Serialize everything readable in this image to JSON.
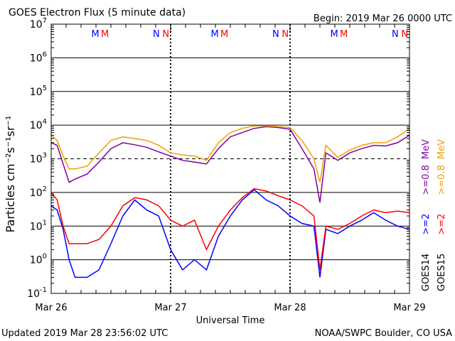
{
  "header": {
    "title": "GOES Electron Flux (5 minute data)",
    "begin": "Begin: 2019 Mar 26 0000 UTC"
  },
  "footer": {
    "updated": "Updated 2019 Mar 28 23:56:02 UTC",
    "credit": "NOAA/SWPC Boulder, CO USA"
  },
  "colors": {
    "goes14_high": "#0000ff",
    "goes15_high": "#ff0000",
    "goes14_low": "#8000a0",
    "goes15_low": "#f0a000",
    "grid": "#000000"
  },
  "chart_data": {
    "type": "line",
    "title": "GOES Electron Flux (5 minute data)",
    "xlabel": "Universal Time",
    "ylabel": "Particles cm⁻²s⁻¹sr⁻¹",
    "x_ticks": [
      "Mar 26",
      "Mar 27",
      "Mar 28",
      "Mar 29"
    ],
    "x_unit": "days since 2019 Mar 26 0000 UTC",
    "xlim": [
      0,
      3
    ],
    "yscale": "log",
    "ylim": [
      0.1,
      10000000
    ],
    "y_ticks": [
      {
        "base": "10",
        "exp": "-1"
      },
      {
        "base": "10",
        "exp": "0"
      },
      {
        "base": "10",
        "exp": "1"
      },
      {
        "base": "10",
        "exp": "2"
      },
      {
        "base": "10",
        "exp": "3"
      },
      {
        "base": "10",
        "exp": "4"
      },
      {
        "base": "10",
        "exp": "5"
      },
      {
        "base": "10",
        "exp": "6"
      },
      {
        "base": "10",
        "exp": "7"
      }
    ],
    "grid": true,
    "legend": {
      "placement": "right",
      "rows": [
        {
          "sat": "GOES14",
          "items": [
            {
              "label": ">=2",
              "color": "#0000ff"
            },
            {
              "label": ">=0.8",
              "color": "#8000a0"
            }
          ]
        },
        {
          "sat": "GOES15",
          "items": [
            {
              "label": ">=2",
              "color": "#ff0000"
            },
            {
              "label": ">=0.8",
              "color": "#f0a000"
            }
          ]
        }
      ],
      "unit": "MeV"
    },
    "markers": [
      {
        "label": "M",
        "x": 0.37,
        "color": "#0000ff"
      },
      {
        "label": "M",
        "x": 0.45,
        "color": "#ff0000"
      },
      {
        "label": "N",
        "x": 0.88,
        "color": "#0000ff"
      },
      {
        "label": "N",
        "x": 0.96,
        "color": "#ff0000"
      },
      {
        "label": "M",
        "x": 1.37,
        "color": "#0000ff"
      },
      {
        "label": "M",
        "x": 1.45,
        "color": "#ff0000"
      },
      {
        "label": "N",
        "x": 1.88,
        "color": "#0000ff"
      },
      {
        "label": "N",
        "x": 1.96,
        "color": "#ff0000"
      },
      {
        "label": "M",
        "x": 2.37,
        "color": "#0000ff"
      },
      {
        "label": "M",
        "x": 2.45,
        "color": "#ff0000"
      },
      {
        "label": "N",
        "x": 2.88,
        "color": "#0000ff"
      },
      {
        "label": "N",
        "x": 2.96,
        "color": "#ff0000"
      }
    ],
    "series": [
      {
        "name": "GOES14 >=2 MeV",
        "color": "#0000ff",
        "x": [
          0,
          0.05,
          0.1,
          0.15,
          0.2,
          0.3,
          0.4,
          0.5,
          0.6,
          0.7,
          0.8,
          0.9,
          1.0,
          1.1,
          1.2,
          1.3,
          1.4,
          1.5,
          1.6,
          1.7,
          1.8,
          1.9,
          2.0,
          2.1,
          2.2,
          2.25,
          2.3,
          2.4,
          2.5,
          2.6,
          2.7,
          2.8,
          2.9,
          3.0
        ],
        "values": [
          40,
          30,
          8,
          1,
          0.3,
          0.3,
          0.5,
          3,
          20,
          60,
          30,
          20,
          2,
          0.5,
          1,
          0.5,
          5,
          20,
          60,
          120,
          60,
          40,
          20,
          12,
          10,
          0.3,
          8,
          6,
          10,
          15,
          25,
          15,
          10,
          8
        ]
      },
      {
        "name": "GOES15 >=2 MeV",
        "color": "#ff0000",
        "x": [
          0,
          0.05,
          0.1,
          0.15,
          0.2,
          0.3,
          0.4,
          0.5,
          0.6,
          0.7,
          0.8,
          0.9,
          1.0,
          1.1,
          1.2,
          1.3,
          1.4,
          1.5,
          1.6,
          1.7,
          1.8,
          1.9,
          2.0,
          2.1,
          2.2,
          2.25,
          2.3,
          2.4,
          2.5,
          2.6,
          2.7,
          2.8,
          2.9,
          3.0
        ],
        "values": [
          100,
          60,
          10,
          3,
          3,
          3,
          4,
          10,
          40,
          70,
          60,
          40,
          15,
          10,
          15,
          2,
          10,
          30,
          70,
          130,
          110,
          80,
          60,
          40,
          20,
          0.5,
          10,
          8,
          12,
          20,
          30,
          25,
          28,
          25
        ]
      },
      {
        "name": "GOES14 >=0.8 MeV",
        "color": "#8000a0",
        "x": [
          0,
          0.05,
          0.1,
          0.15,
          0.2,
          0.3,
          0.4,
          0.5,
          0.6,
          0.7,
          0.8,
          0.9,
          1.0,
          1.1,
          1.2,
          1.3,
          1.4,
          1.5,
          1.6,
          1.7,
          1.8,
          1.9,
          2.0,
          2.1,
          2.2,
          2.25,
          2.3,
          2.4,
          2.5,
          2.6,
          2.7,
          2.8,
          2.9,
          3.0
        ],
        "values": [
          3000,
          2500,
          700,
          200,
          250,
          350,
          800,
          2000,
          3000,
          2600,
          2200,
          1600,
          1200,
          900,
          800,
          700,
          2000,
          4500,
          6000,
          8000,
          9000,
          8500,
          7500,
          2000,
          500,
          50,
          1500,
          900,
          1500,
          2000,
          2500,
          2400,
          3000,
          5000
        ]
      },
      {
        "name": "GOES15 >=0.8 MeV",
        "color": "#f0a000",
        "x": [
          0,
          0.05,
          0.1,
          0.15,
          0.2,
          0.3,
          0.4,
          0.5,
          0.6,
          0.7,
          0.8,
          0.9,
          1.0,
          1.1,
          1.2,
          1.3,
          1.4,
          1.5,
          1.6,
          1.7,
          1.8,
          1.9,
          2.0,
          2.1,
          2.2,
          2.25,
          2.3,
          2.4,
          2.5,
          2.6,
          2.7,
          2.8,
          2.9,
          3.0
        ],
        "values": [
          5000,
          3500,
          1200,
          500,
          500,
          600,
          1500,
          3500,
          4500,
          4000,
          3500,
          2500,
          1500,
          1300,
          1200,
          900,
          3000,
          6000,
          8000,
          9500,
          9500,
          9000,
          8500,
          3500,
          1000,
          200,
          2500,
          1100,
          1800,
          2500,
          3000,
          3000,
          4500,
          8000
        ]
      }
    ]
  }
}
